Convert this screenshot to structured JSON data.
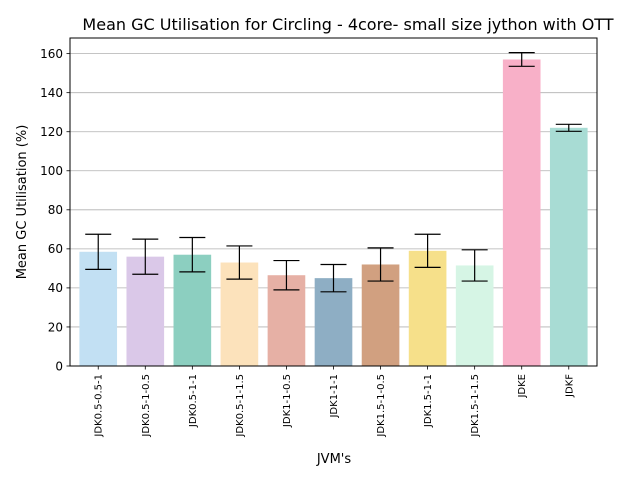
{
  "chart_data": {
    "type": "bar",
    "title": "Mean GC Utilisation for Circling - 4core- small size jython with OTT",
    "xlabel": "JVM's",
    "ylabel": "Mean GC Utilisation (%)",
    "ylim": [
      0,
      168
    ],
    "yticks": [
      0,
      20,
      40,
      60,
      80,
      100,
      120,
      140,
      160
    ],
    "grid": "horizontal",
    "categories": [
      "JDK0.5-0.5-1",
      "JDK0.5-1-0.5",
      "JDK0.5-1-1",
      "JDK0.5-1-1.5",
      "JDK1-1-0.5",
      "JDK1-1-1",
      "JDK1.5-1-0.5",
      "JDK1.5-1-1",
      "JDK1.5-1-1.5",
      "JDKE",
      "JDKF"
    ],
    "values": [
      58.5,
      56,
      57,
      53,
      46.5,
      45,
      52,
      59,
      51.5,
      157,
      122
    ],
    "errors": [
      9,
      9,
      8.8,
      8.5,
      7.5,
      7,
      8.5,
      8.5,
      8,
      3.5,
      1.8
    ],
    "colors": [
      "#c2e0f3",
      "#dac8e8",
      "#8ccfc0",
      "#fce2bb",
      "#e6b0a5",
      "#8eaec4",
      "#d1a080",
      "#f6e08a",
      "#d6f5e5",
      "#f8b0c8",
      "#a8dcd4"
    ]
  }
}
